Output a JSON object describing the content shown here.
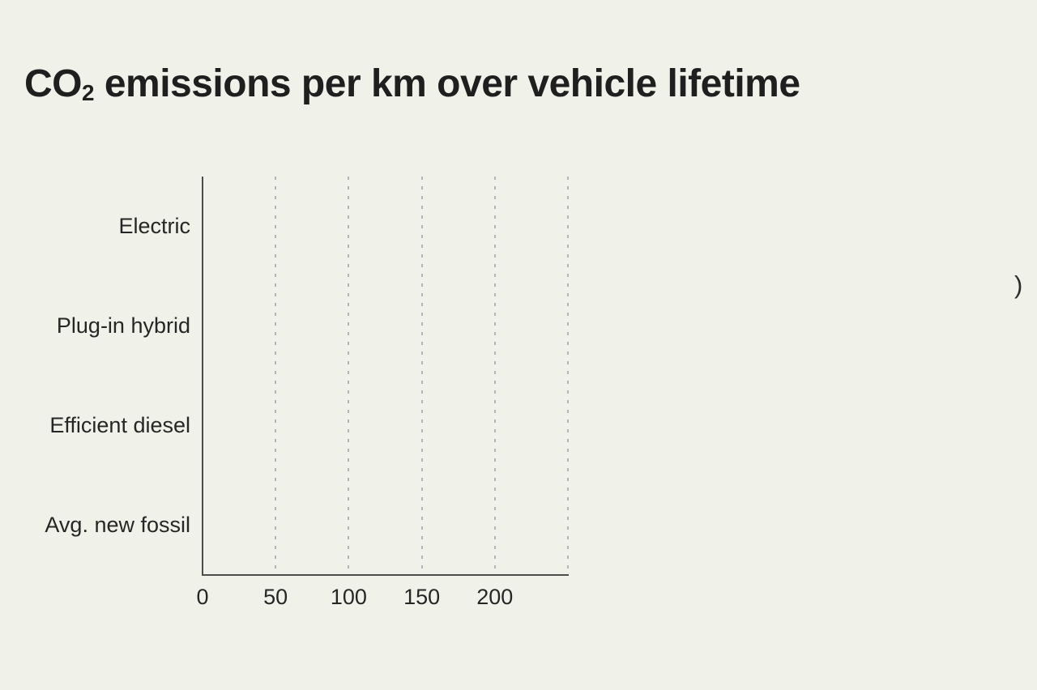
{
  "title_parts": {
    "prefix": "CO",
    "subscript": "2",
    "rest": " emissions per km over vehicle lifetime"
  },
  "stray_fragment": {
    "text": ")"
  },
  "colors": {
    "background": "#f0f1e9",
    "title_text": "#1f1f1f",
    "label_text": "#262626",
    "axis_line": "#4d4d4d",
    "gridline": "#b2b4bd"
  },
  "chart_data": {
    "type": "bar",
    "orientation": "horizontal",
    "title": "CO2 emissions per km over vehicle lifetime",
    "categories": [
      "Electric",
      "Plug-in hybrid",
      "Efficient diesel",
      "Avg. new fossil"
    ],
    "values": [
      null,
      null,
      null,
      null
    ],
    "bars_visible": false,
    "xlabel": "",
    "ylabel": "",
    "xlim": [
      0,
      250
    ],
    "x_ticks": [
      0,
      50,
      100,
      150,
      200
    ],
    "x_gridlines": [
      50,
      100,
      150,
      200,
      250
    ],
    "grid": "dotted-vertical",
    "legend": "none"
  }
}
